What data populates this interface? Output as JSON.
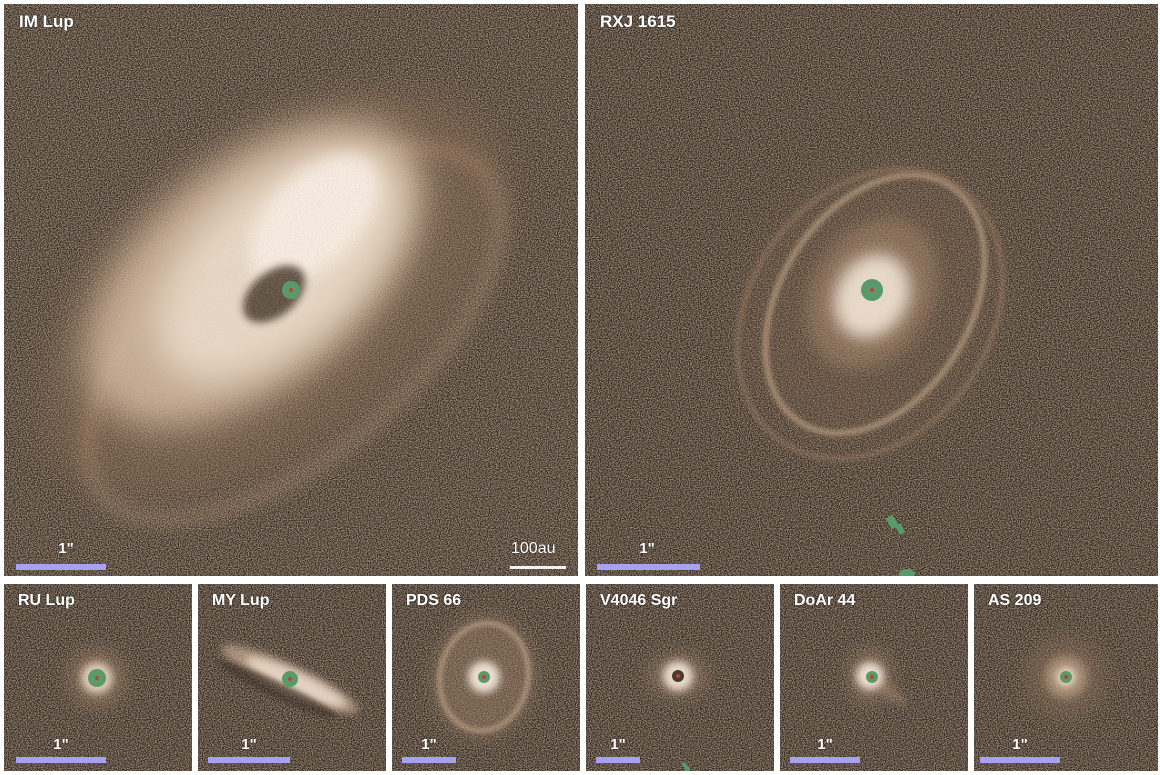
{
  "panels": {
    "im_lup": {
      "title": "IM Lup",
      "scale_arcsec": "1\"",
      "scale_au": "100au"
    },
    "rxj_1615": {
      "title": "RXJ 1615",
      "scale_arcsec": "1\""
    },
    "ru_lup": {
      "title": "RU Lup",
      "scale_arcsec": "1\""
    },
    "my_lup": {
      "title": "MY Lup",
      "scale_arcsec": "1\""
    },
    "pds_66": {
      "title": "PDS 66",
      "scale_arcsec": "1\""
    },
    "v4046_sgr": {
      "title": "V4046 Sgr",
      "scale_arcsec": "1\""
    },
    "doar_44": {
      "title": "DoAr 44",
      "scale_arcsec": "1\""
    },
    "as_209": {
      "title": "AS 209",
      "scale_arcsec": "1\""
    }
  },
  "colors": {
    "background": "#2e241c",
    "disk_light": "#f4e6d6",
    "disk_mid": "#b89474",
    "coronagraph_mask": "#5a9a68",
    "star_marker": "#c0413a",
    "scale_bar": "#a7a2ef"
  }
}
